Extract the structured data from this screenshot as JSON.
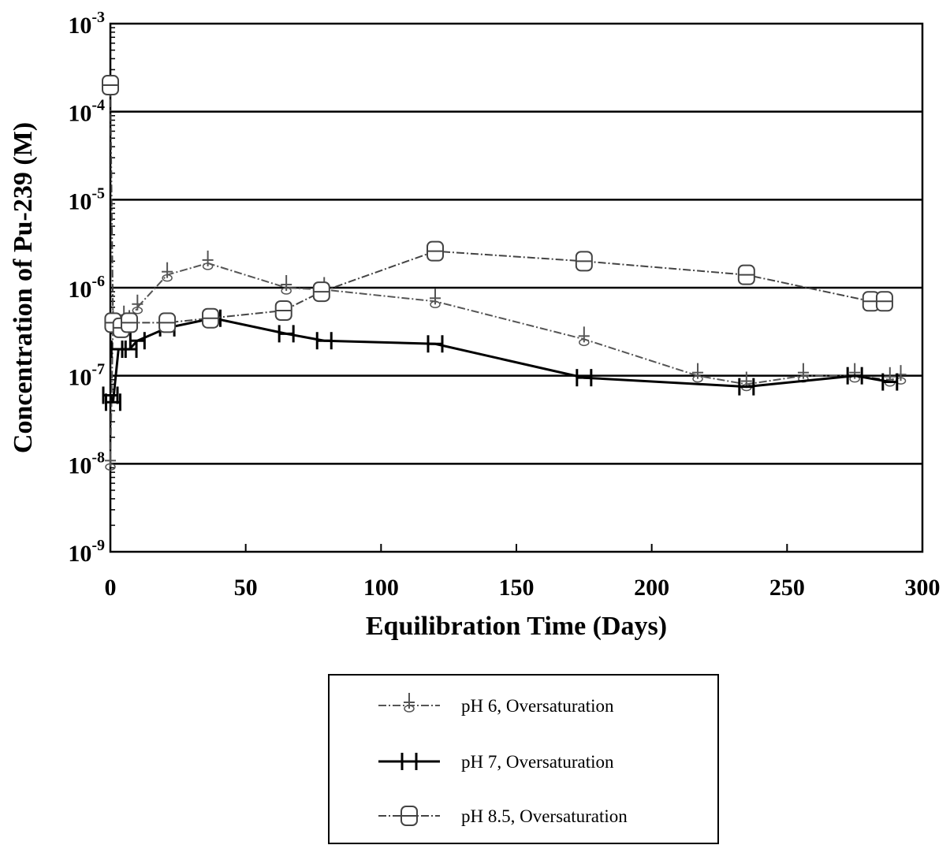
{
  "chart_data": {
    "type": "line",
    "title": "",
    "xlabel": "Equilibration Time (Days)",
    "ylabel": "Concentration of Pu-239 (M)",
    "xlim": [
      0,
      300
    ],
    "ylim_exponent": [
      -9,
      -3
    ],
    "y_scale": "log",
    "x_ticks": [
      0,
      50,
      100,
      150,
      200,
      250,
      300
    ],
    "y_ticks": [
      {
        "base": "10",
        "exp": "-3"
      },
      {
        "base": "10",
        "exp": "-4"
      },
      {
        "base": "10",
        "exp": "-5"
      },
      {
        "base": "10",
        "exp": "-6"
      },
      {
        "base": "10",
        "exp": "-7"
      },
      {
        "base": "10",
        "exp": "-8"
      },
      {
        "base": "10",
        "exp": "-9"
      }
    ],
    "grid": "horizontal major",
    "legend_position": "bottom-center",
    "series": [
      {
        "name": "pH 6, Oversaturation",
        "marker": "plus-circle",
        "color": "#555555",
        "dashed": true,
        "points": [
          [
            0,
            1e-08
          ],
          [
            1,
            4e-07
          ],
          [
            3,
            3.5e-07
          ],
          [
            5,
            4.5e-07
          ],
          [
            7,
            4e-07
          ],
          [
            10,
            6e-07
          ],
          [
            21,
            1.4e-06
          ],
          [
            36,
            1.9e-06
          ],
          [
            65,
            1e-06
          ],
          [
            79,
            9.5e-07
          ],
          [
            120,
            7e-07
          ],
          [
            175,
            2.6e-07
          ],
          [
            217,
            1e-07
          ],
          [
            235,
            8e-08
          ],
          [
            256,
            1e-07
          ],
          [
            275,
            1e-07
          ],
          [
            288,
            9e-08
          ],
          [
            292,
            9.5e-08
          ]
        ]
      },
      {
        "name": "pH 7, Oversaturation",
        "marker": "H",
        "color": "#000000",
        "dashed": false,
        "points": [
          [
            0,
            6e-08
          ],
          [
            1,
            5e-08
          ],
          [
            3,
            2e-07
          ],
          [
            7,
            2e-07
          ],
          [
            10,
            2.5e-07
          ],
          [
            21,
            3.5e-07
          ],
          [
            38,
            4.5e-07
          ],
          [
            65,
            3e-07
          ],
          [
            79,
            2.5e-07
          ],
          [
            120,
            2.3e-07
          ],
          [
            175,
            9.5e-08
          ],
          [
            235,
            7.5e-08
          ],
          [
            275,
            1e-07
          ],
          [
            288,
            8.5e-08
          ]
        ]
      },
      {
        "name": "pH 8.5, Oversaturation",
        "marker": "B",
        "color": "#444444",
        "dashed": true,
        "points": [
          [
            0,
            0.0002
          ],
          [
            1,
            4e-07
          ],
          [
            4,
            3.5e-07
          ],
          [
            7,
            4e-07
          ],
          [
            21,
            4e-07
          ],
          [
            37,
            4.5e-07
          ],
          [
            64,
            5.5e-07
          ],
          [
            78,
            9e-07
          ],
          [
            120,
            2.6e-06
          ],
          [
            175,
            2e-06
          ],
          [
            235,
            1.4e-06
          ],
          [
            281,
            7e-07
          ],
          [
            286,
            7e-07
          ]
        ]
      }
    ]
  }
}
